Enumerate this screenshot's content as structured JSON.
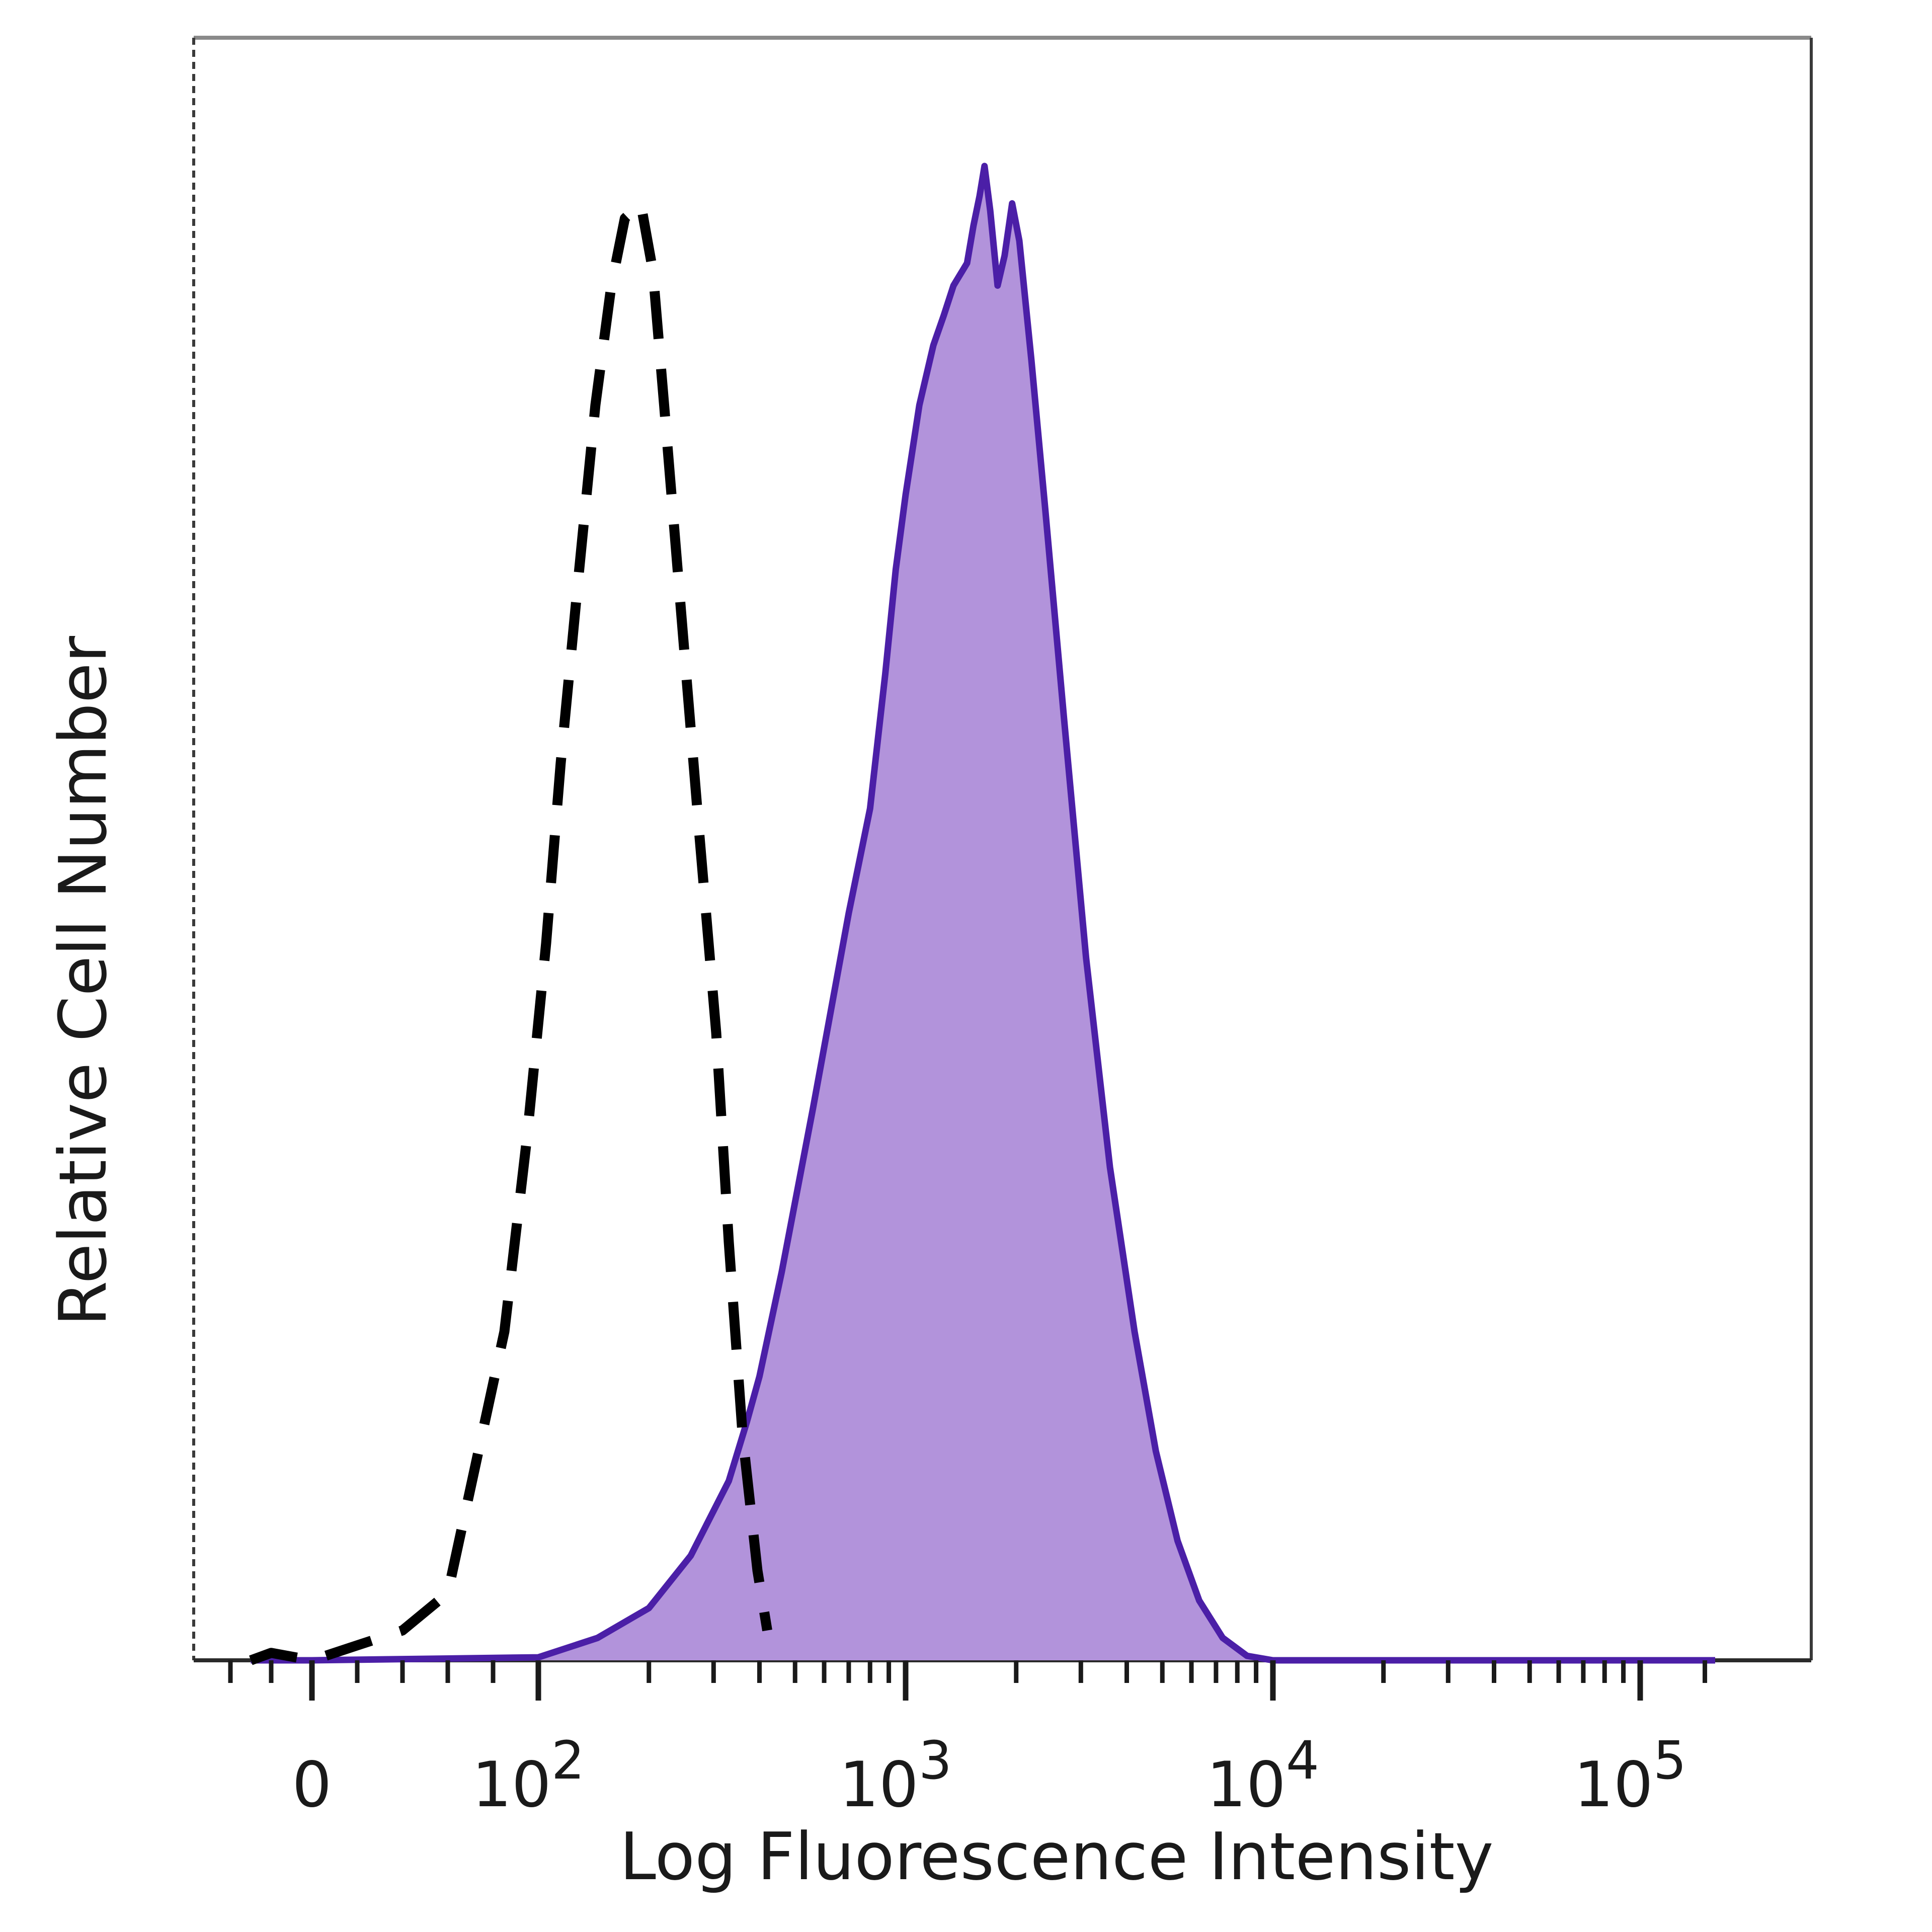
{
  "chart_data": {
    "type": "area",
    "title": "",
    "xlabel": "Log Fluorescence Intensity",
    "ylabel": "Relative Cell Number",
    "x_scale": "biexponential (log above 10^2, linear near 0)",
    "x_ticks": [
      {
        "value": 0,
        "base": "0",
        "exp": ""
      },
      {
        "value": 100,
        "base": "10",
        "exp": "2"
      },
      {
        "value": 1000,
        "base": "10",
        "exp": "3"
      },
      {
        "value": 10000,
        "base": "10",
        "exp": "4"
      },
      {
        "value": 100000,
        "base": "10",
        "exp": "5"
      }
    ],
    "xlim": [
      -50,
      180000
    ],
    "ylim": [
      0,
      1
    ],
    "grid": false,
    "legend": "none",
    "series": [
      {
        "style": "dashed",
        "color": "#000000",
        "fill": "none",
        "points": [
          [
            -30,
            0.0
          ],
          [
            -20,
            0.005
          ],
          [
            0,
            0.0
          ],
          [
            20,
            0.01
          ],
          [
            40,
            0.02
          ],
          [
            60,
            0.045
          ],
          [
            85,
            0.22
          ],
          [
            95,
            0.35
          ],
          [
            105,
            0.48
          ],
          [
            115,
            0.6
          ],
          [
            128,
            0.72
          ],
          [
            143,
            0.84
          ],
          [
            158,
            0.92
          ],
          [
            172,
            0.965
          ],
          [
            190,
            0.975
          ],
          [
            205,
            0.93
          ],
          [
            220,
            0.84
          ],
          [
            245,
            0.7
          ],
          [
            275,
            0.55
          ],
          [
            305,
            0.42
          ],
          [
            330,
            0.28
          ],
          [
            360,
            0.15
          ],
          [
            395,
            0.06
          ],
          [
            420,
            0.02
          ]
        ]
      },
      {
        "style": "solid",
        "color": "#4b1fa7",
        "fill": "#b293db",
        "points": [
          [
            -30,
            0.0
          ],
          [
            0,
            0.0
          ],
          [
            100,
            0.002
          ],
          [
            145,
            0.015
          ],
          [
            200,
            0.035
          ],
          [
            260,
            0.07
          ],
          [
            330,
            0.12
          ],
          [
            370,
            0.16
          ],
          [
            400,
            0.19
          ],
          [
            460,
            0.26
          ],
          [
            560,
            0.37
          ],
          [
            700,
            0.5
          ],
          [
            800,
            0.57
          ],
          [
            880,
            0.66
          ],
          [
            940,
            0.73
          ],
          [
            1000,
            0.78
          ],
          [
            1090,
            0.84
          ],
          [
            1190,
            0.88
          ],
          [
            1270,
            0.9
          ],
          [
            1350,
            0.92
          ],
          [
            1470,
            0.935
          ],
          [
            1530,
            0.96
          ],
          [
            1590,
            0.98
          ],
          [
            1640,
            1.0
          ],
          [
            1700,
            0.97
          ],
          [
            1780,
            0.92
          ],
          [
            1860,
            0.94
          ],
          [
            1950,
            0.975
          ],
          [
            2040,
            0.95
          ],
          [
            2200,
            0.87
          ],
          [
            2400,
            0.77
          ],
          [
            2700,
            0.63
          ],
          [
            3100,
            0.47
          ],
          [
            3600,
            0.33
          ],
          [
            4200,
            0.22
          ],
          [
            4800,
            0.14
          ],
          [
            5500,
            0.08
          ],
          [
            6300,
            0.04
          ],
          [
            7300,
            0.015
          ],
          [
            8500,
            0.003
          ],
          [
            10000,
            0.0
          ],
          [
            100000,
            0.0
          ],
          [
            160000,
            0.0
          ]
        ]
      }
    ]
  }
}
